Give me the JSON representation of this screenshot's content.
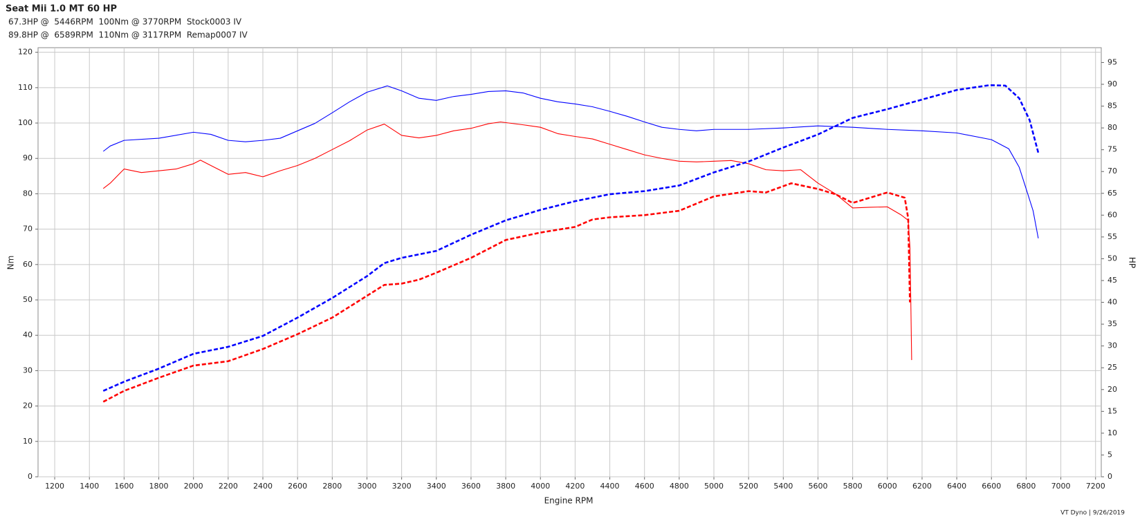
{
  "chart_data": {
    "type": "line",
    "title": "Seat Mii 1.0 MT 60 HP",
    "annotations": [
      {
        "text": "67.3HP @  5446RPM  100Nm @ 3770RPM  Stock0003 IV",
        "color": "#ff0000"
      },
      {
        "text": "89.8HP @  6589RPM  110Nm @ 3117RPM  Remap0007 IV",
        "color": "#0000ff"
      }
    ],
    "xlabel": "Engine RPM",
    "ylabel": "Nm",
    "y2label": "HP",
    "footer": "VT Dyno | 9/26/2019",
    "xlim": [
      1104,
      7233
    ],
    "xticks": [
      1200,
      1400,
      1600,
      1800,
      2000,
      2200,
      2400,
      2600,
      2800,
      3000,
      3200,
      3400,
      3600,
      3800,
      4000,
      4200,
      4400,
      4600,
      4800,
      5000,
      5200,
      5400,
      5600,
      5800,
      6000,
      6200,
      6400,
      6600,
      6800,
      7000,
      7200
    ],
    "ylim": [
      0,
      121.3
    ],
    "yticks": [
      0,
      10,
      20,
      30,
      40,
      50,
      60,
      70,
      80,
      90,
      100,
      110,
      120
    ],
    "y2lim": [
      0,
      98.4
    ],
    "y2ticks": [
      0,
      5,
      10,
      15,
      20,
      25,
      30,
      35,
      40,
      45,
      50,
      55,
      60,
      65,
      70,
      75,
      80,
      85,
      90,
      95
    ],
    "grid": true,
    "series": [
      {
        "color": "#ff0000",
        "axis": "y",
        "dashed": false,
        "x": [
          1480,
          1520,
          1600,
          1700,
          1800,
          1900,
          2000,
          2040,
          2100,
          2200,
          2300,
          2400,
          2500,
          2600,
          2700,
          2800,
          2900,
          3000,
          3100,
          3200,
          3300,
          3400,
          3500,
          3600,
          3700,
          3770,
          3900,
          4000,
          4100,
          4200,
          4300,
          4400,
          4500,
          4600,
          4700,
          4800,
          4900,
          5000,
          5100,
          5200,
          5300,
          5400,
          5500,
          5600,
          5700,
          5800,
          5900,
          6000,
          6080,
          6120,
          6130,
          6135,
          6140
        ],
        "values": [
          81.5,
          83,
          87,
          86,
          86.5,
          87,
          88.5,
          89.5,
          88,
          85.5,
          86,
          84.8,
          86.5,
          88,
          90,
          92.5,
          95,
          98,
          99.7,
          96.5,
          95.8,
          96.5,
          97.8,
          98.5,
          99.8,
          100.3,
          99.5,
          98.8,
          97,
          96.2,
          95.5,
          94,
          92.5,
          91,
          90,
          89.2,
          89,
          89.2,
          89.4,
          88.5,
          86.8,
          86.5,
          86.8,
          83,
          80,
          76,
          76.2,
          76.3,
          74,
          72.5,
          65,
          50,
          33
        ]
      },
      {
        "color": "#ff0000",
        "axis": "y2",
        "dashed": true,
        "x": [
          1480,
          1600,
          1800,
          2000,
          2200,
          2400,
          2600,
          2800,
          3000,
          3100,
          3200,
          3300,
          3400,
          3600,
          3800,
          4000,
          4200,
          4300,
          4400,
          4600,
          4800,
          5000,
          5200,
          5300,
          5446,
          5600,
          5700,
          5800,
          5900,
          6000,
          6100,
          6120,
          6130
        ],
        "values": [
          17.2,
          19.7,
          22.7,
          25.5,
          26.5,
          29.3,
          32.7,
          36.5,
          41.5,
          44,
          44.3,
          45.2,
          46.8,
          50.2,
          54.3,
          56,
          57.3,
          59,
          59.5,
          60,
          61,
          64.3,
          65.5,
          65.2,
          67.3,
          66,
          64.8,
          62.8,
          64,
          65.2,
          64,
          59.3,
          40
        ]
      },
      {
        "color": "#0000ff",
        "axis": "y",
        "dashed": false,
        "x": [
          1480,
          1520,
          1600,
          1800,
          2000,
          2100,
          2200,
          2300,
          2400,
          2500,
          2600,
          2700,
          2800,
          2900,
          3000,
          3117,
          3200,
          3300,
          3400,
          3500,
          3600,
          3700,
          3800,
          3900,
          4000,
          4100,
          4200,
          4300,
          4400,
          4500,
          4600,
          4700,
          4800,
          4900,
          5000,
          5200,
          5400,
          5600,
          5800,
          6000,
          6200,
          6400,
          6600,
          6700,
          6760,
          6800,
          6840,
          6870
        ],
        "values": [
          92,
          93.5,
          95.1,
          95.7,
          97.4,
          96.8,
          95.1,
          94.7,
          95.1,
          95.7,
          97.8,
          99.9,
          102.9,
          106,
          108.7,
          110.5,
          109.1,
          107,
          106.4,
          107.5,
          108.1,
          108.9,
          109.1,
          108.5,
          107,
          106,
          105.4,
          104.6,
          103.3,
          101.9,
          100.3,
          98.8,
          98.2,
          97.8,
          98.2,
          98.2,
          98.6,
          99.2,
          98.8,
          98.2,
          97.8,
          97.2,
          95.3,
          92.7,
          87.5,
          81.4,
          75.2,
          67.4
        ]
      },
      {
        "color": "#0000ff",
        "axis": "y2",
        "dashed": true,
        "x": [
          1480,
          1600,
          1800,
          2000,
          2100,
          2200,
          2400,
          2600,
          2800,
          3000,
          3100,
          3200,
          3400,
          3600,
          3800,
          4000,
          4200,
          4400,
          4600,
          4800,
          5000,
          5200,
          5400,
          5600,
          5800,
          6000,
          6200,
          6400,
          6589,
          6680,
          6760,
          6820,
          6870
        ],
        "values": [
          19.7,
          21.8,
          24.8,
          28.2,
          29,
          29.8,
          32.3,
          36.5,
          41,
          46,
          49,
          50.2,
          51.8,
          55.5,
          58.8,
          61.2,
          63.2,
          64.8,
          65.5,
          66.8,
          69.8,
          72.3,
          75.5,
          78.5,
          82.3,
          84.3,
          86.5,
          88.7,
          89.8,
          89.7,
          86.8,
          81.8,
          74.3
        ]
      }
    ]
  }
}
